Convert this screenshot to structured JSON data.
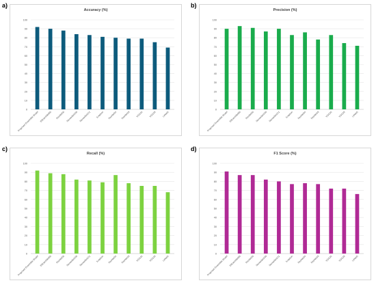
{
  "panels": [
    {
      "letter": "a)",
      "color": "#0d5b7c",
      "chart_data": {
        "type": "bar",
        "title": "Accuracy (%)",
        "categories": [
          "Proposed Ensemble Model",
          "EfficientNetB0",
          "ResNet50",
          "DenseNet169",
          "DenseNet121",
          "Xception",
          "ResNet34",
          "ResNet18",
          "VGG16",
          "VGG19",
          "LeNet5"
        ],
        "values": [
          92,
          90,
          88,
          84,
          83,
          81,
          80,
          79,
          79,
          75,
          69
        ],
        "ylim": [
          0,
          100
        ],
        "yticks": [
          "0",
          "10",
          "20",
          "30",
          "40",
          "50",
          "60",
          "70",
          "80",
          "90",
          "100"
        ],
        "grid": true,
        "xlabel": "",
        "ylabel": ""
      }
    },
    {
      "letter": "b)",
      "color": "#1aac4c",
      "chart_data": {
        "type": "bar",
        "title": "Precision (%)",
        "categories": [
          "Proposed Ensemble Model",
          "EfficientNetB0",
          "ResNet50",
          "DenseNet169",
          "DenseNet121",
          "Xception",
          "ResNet34",
          "ResNet18",
          "VGG16",
          "VGG19",
          "LeNet5"
        ],
        "values": [
          90,
          93,
          91,
          87,
          90,
          83,
          86,
          78,
          83,
          74,
          71
        ],
        "ylim": [
          0,
          100
        ],
        "yticks": [
          "0",
          "10",
          "20",
          "30",
          "40",
          "50",
          "60",
          "70",
          "80",
          "90",
          "100"
        ],
        "grid": true,
        "xlabel": "",
        "ylabel": ""
      }
    },
    {
      "letter": "c)",
      "color": "#7dd240",
      "chart_data": {
        "type": "bar",
        "title": "Recall (%)",
        "categories": [
          "Proposed Ensemble Model",
          "EfficientNetB0",
          "ResNet50",
          "DenseNet169",
          "DenseNet121",
          "Xception",
          "ResNet34",
          "ResNet18",
          "VGG16",
          "VGG19",
          "LeNet5"
        ],
        "values": [
          92,
          89,
          88,
          82,
          81,
          79,
          87,
          78,
          75,
          75,
          68
        ],
        "ylim": [
          0,
          100
        ],
        "yticks": [
          "0",
          "10",
          "20",
          "30",
          "40",
          "50",
          "60",
          "70",
          "80",
          "90",
          "100"
        ],
        "grid": true,
        "xlabel": "",
        "ylabel": ""
      }
    },
    {
      "letter": "d)",
      "color": "#b02a95",
      "chart_data": {
        "type": "bar",
        "title": "F1 Score (%)",
        "categories": [
          "Proposed Ensemble Model",
          "EfficientNetB0",
          "ResNet50",
          "DenseNet169",
          "DenseNet121",
          "Xception",
          "ResNet34",
          "ResNet18",
          "VGG16",
          "VGG19",
          "LeNet5"
        ],
        "values": [
          91,
          87,
          87,
          82,
          80,
          77,
          78,
          77,
          72,
          72,
          66
        ],
        "ylim": [
          0,
          100
        ],
        "yticks": [
          "0",
          "10",
          "20",
          "30",
          "40",
          "50",
          "60",
          "70",
          "80",
          "90",
          "100"
        ],
        "grid": true,
        "xlabel": "",
        "ylabel": ""
      }
    }
  ]
}
